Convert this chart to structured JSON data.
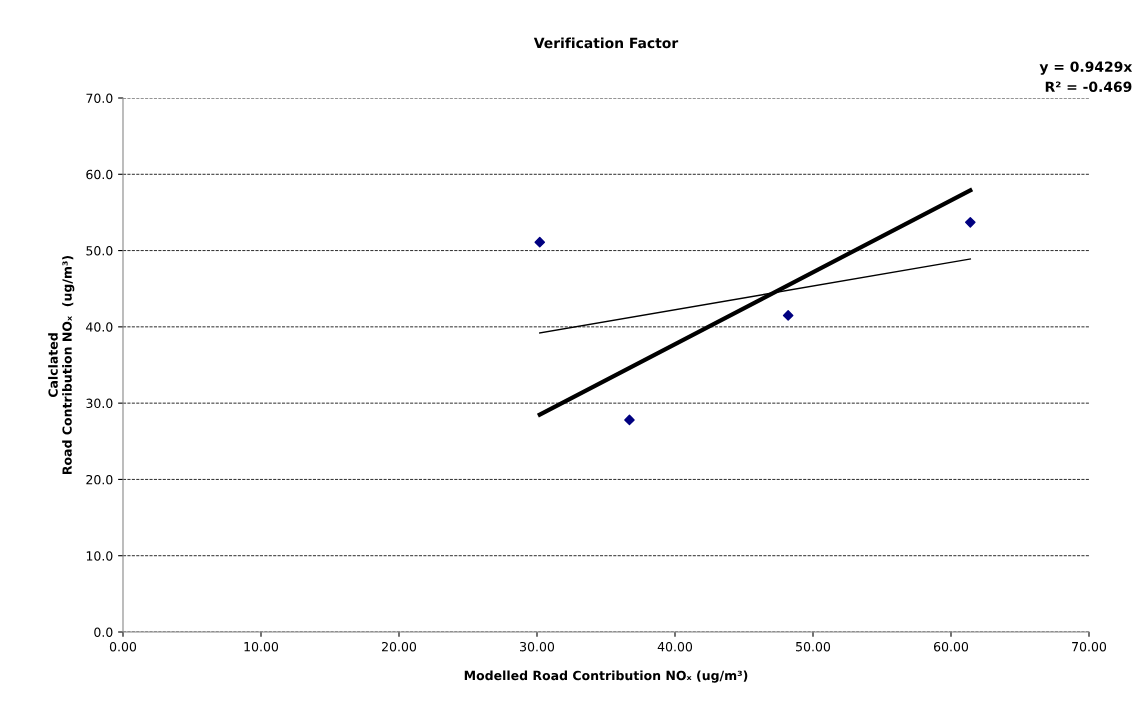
{
  "chart_data": {
    "type": "scatter",
    "title": "Verification Factor",
    "xlabel": "Modelled Road Contribution NOₓ (ug/m³)",
    "ylabel": "Calclated\nRoad Contribution NOₓ  (ug/m³)",
    "series": [
      {
        "color": "#000080",
        "x": [
          30.2,
          36.7,
          48.2,
          61.4
        ],
        "values": [
          51.1,
          27.8,
          41.5,
          53.7
        ],
        "marker": "diamond"
      },
      {
        "type": "line",
        "color": "#000000",
        "x": [
          30.2,
          61.4
        ],
        "values": [
          28.5,
          57.9
        ]
      },
      {
        "type": "line",
        "color": "#000000",
        "x": [
          30.2,
          61.4
        ],
        "values": [
          39.2,
          48.9
        ]
      }
    ],
    "xlim": [
      0,
      70
    ],
    "xticks": [
      {
        "value": 0,
        "label": "0.00"
      },
      {
        "value": 10,
        "label": "10.00"
      },
      {
        "value": 20,
        "label": "20.00"
      },
      {
        "value": 30,
        "label": "30.00"
      },
      {
        "value": 40,
        "label": "40.00"
      },
      {
        "value": 50,
        "label": "50.00"
      },
      {
        "value": 60,
        "label": "60.00"
      },
      {
        "value": 70,
        "label": "70.00"
      }
    ],
    "ylim": [
      0,
      70
    ],
    "yticks": [
      {
        "value": 0,
        "label": "0.0"
      },
      {
        "value": 10,
        "label": "10.0"
      },
      {
        "value": 20,
        "label": "20.0"
      },
      {
        "value": 30,
        "label": "30.0"
      },
      {
        "value": 40,
        "label": "40.0"
      },
      {
        "value": 50,
        "label": "50.0"
      },
      {
        "value": 60,
        "label": "60.0"
      },
      {
        "value": 70,
        "label": "70.0"
      }
    ],
    "grid": "y",
    "line_style": "solid",
    "annotations": [
      "y = 0.9429x",
      "R² = -0.469"
    ]
  }
}
